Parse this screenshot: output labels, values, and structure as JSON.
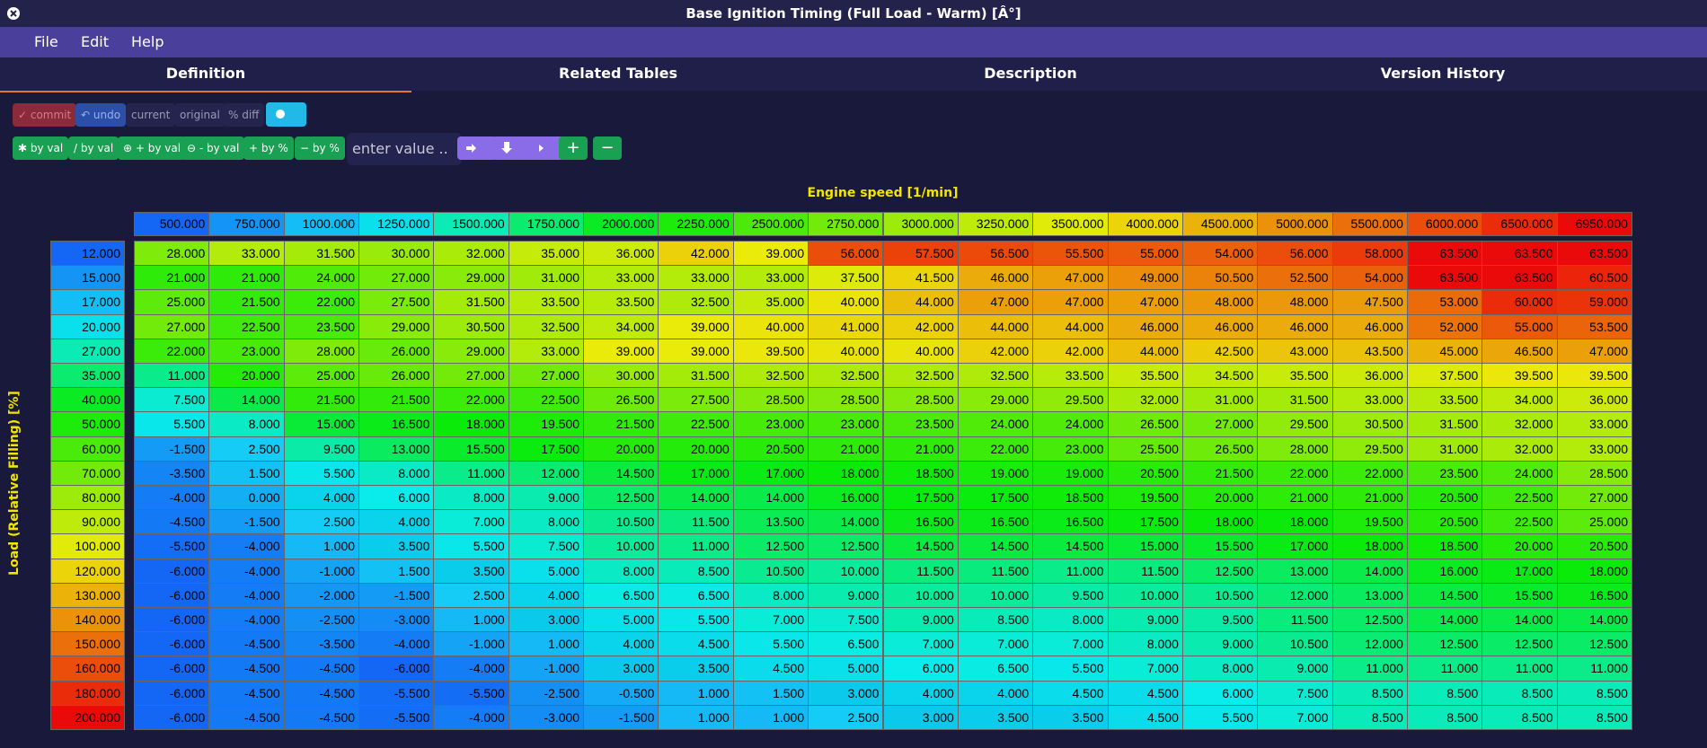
{
  "window": {
    "title": "Base Ignition Timing (Full Load - Warm) [Â°]"
  },
  "menu": [
    "File",
    "Edit",
    "Help"
  ],
  "tabs": [
    "Definition",
    "Related Tables",
    "Description",
    "Version History"
  ],
  "toolbar": {
    "row1": [
      "✓ commit",
      "↶ undo",
      "current",
      "original",
      "% diff"
    ],
    "row2": [
      "✱ by val",
      "/ by val",
      "⊕ + by val",
      "⊖ - by val",
      "+ by %",
      "− by %"
    ],
    "input": "enter value ..",
    "actions": [
      "+",
      "−"
    ]
  },
  "table": {
    "x_label": "Engine speed [1/min]",
    "y_label": "Load (Relative Filling) [%]",
    "columns": [
      "500.000",
      "750.000",
      "1000.000",
      "1250.000",
      "1500.000",
      "1750.000",
      "2000.000",
      "2250.000",
      "2500.000",
      "2750.000",
      "3000.000",
      "3250.000",
      "3500.000",
      "4000.000",
      "4500.000",
      "5000.000",
      "5500.000",
      "6000.000",
      "6500.000",
      "6950.000"
    ],
    "row_headers": [
      "12.000",
      "15.000",
      "17.000",
      "20.000",
      "27.000",
      "35.000",
      "40.000",
      "50.000",
      "60.000",
      "70.000",
      "80.000",
      "90.000",
      "100.000",
      "120.000",
      "130.000",
      "140.000",
      "150.000",
      "160.000",
      "180.000",
      "200.000"
    ],
    "rows": [
      [
        "28.000",
        "33.000",
        "31.500",
        "30.000",
        "32.000",
        "35.000",
        "36.000",
        "42.000",
        "39.000",
        "56.000",
        "57.500",
        "56.500",
        "55.500",
        "55.000",
        "54.000",
        "56.000",
        "58.000",
        "63.500",
        "63.500",
        "63.500"
      ],
      [
        "21.000",
        "21.000",
        "24.000",
        "27.000",
        "29.000",
        "31.000",
        "33.000",
        "33.000",
        "33.000",
        "37.500",
        "41.500",
        "46.000",
        "47.000",
        "49.000",
        "50.500",
        "52.500",
        "54.000",
        "63.500",
        "63.500",
        "60.500"
      ],
      [
        "25.000",
        "21.500",
        "22.000",
        "27.500",
        "31.500",
        "33.500",
        "33.500",
        "32.500",
        "35.000",
        "40.000",
        "44.000",
        "47.000",
        "47.000",
        "47.000",
        "48.000",
        "48.000",
        "47.500",
        "53.000",
        "60.000",
        "59.000"
      ],
      [
        "27.000",
        "22.500",
        "23.500",
        "29.000",
        "30.500",
        "32.500",
        "34.000",
        "39.000",
        "40.000",
        "41.000",
        "42.000",
        "44.000",
        "44.000",
        "46.000",
        "46.000",
        "46.000",
        "46.000",
        "52.000",
        "55.000",
        "53.500"
      ],
      [
        "22.000",
        "23.000",
        "28.000",
        "26.000",
        "29.000",
        "33.000",
        "39.000",
        "39.000",
        "39.500",
        "40.000",
        "40.000",
        "42.000",
        "42.000",
        "44.000",
        "42.500",
        "43.000",
        "43.500",
        "45.000",
        "46.500",
        "47.000"
      ],
      [
        "11.000",
        "20.000",
        "25.000",
        "26.000",
        "27.000",
        "27.000",
        "30.000",
        "31.500",
        "32.500",
        "32.500",
        "32.500",
        "32.500",
        "33.500",
        "35.500",
        "34.500",
        "35.500",
        "36.000",
        "37.500",
        "39.500",
        "39.500"
      ],
      [
        "7.500",
        "14.000",
        "21.500",
        "21.500",
        "22.000",
        "22.500",
        "26.500",
        "27.500",
        "28.500",
        "28.500",
        "28.500",
        "29.000",
        "29.500",
        "32.000",
        "31.000",
        "31.500",
        "33.000",
        "33.500",
        "34.000",
        "36.000"
      ],
      [
        "5.500",
        "8.000",
        "15.000",
        "16.500",
        "18.000",
        "19.500",
        "21.500",
        "22.500",
        "23.000",
        "23.000",
        "23.500",
        "24.000",
        "24.000",
        "26.500",
        "27.000",
        "29.500",
        "30.500",
        "31.500",
        "32.000",
        "33.000"
      ],
      [
        "-1.500",
        "2.500",
        "9.500",
        "13.000",
        "15.500",
        "17.500",
        "20.000",
        "20.000",
        "20.500",
        "21.000",
        "21.000",
        "22.000",
        "23.000",
        "25.500",
        "26.500",
        "28.000",
        "29.500",
        "31.000",
        "32.000",
        "33.000"
      ],
      [
        "-3.500",
        "1.500",
        "5.500",
        "8.000",
        "11.000",
        "12.000",
        "14.500",
        "17.000",
        "17.000",
        "18.000",
        "18.500",
        "19.000",
        "19.000",
        "20.500",
        "21.500",
        "22.000",
        "22.000",
        "23.500",
        "24.000",
        "28.500"
      ],
      [
        "-4.000",
        "0.000",
        "4.000",
        "6.000",
        "8.000",
        "9.000",
        "12.500",
        "14.000",
        "14.000",
        "16.000",
        "17.500",
        "17.500",
        "18.500",
        "19.500",
        "20.000",
        "21.000",
        "21.000",
        "20.500",
        "22.500",
        "27.000"
      ],
      [
        "-4.500",
        "-1.500",
        "2.500",
        "4.000",
        "7.000",
        "8.000",
        "10.500",
        "11.500",
        "13.500",
        "14.000",
        "16.500",
        "16.500",
        "16.500",
        "17.500",
        "18.000",
        "18.000",
        "19.500",
        "20.500",
        "22.500",
        "25.000"
      ],
      [
        "-5.500",
        "-4.000",
        "1.000",
        "3.500",
        "5.500",
        "7.500",
        "10.000",
        "11.000",
        "12.500",
        "12.500",
        "14.500",
        "14.500",
        "14.500",
        "15.000",
        "15.500",
        "17.000",
        "18.000",
        "18.500",
        "20.000",
        "20.500"
      ],
      [
        "-6.000",
        "-4.000",
        "-1.000",
        "1.500",
        "3.500",
        "5.000",
        "8.000",
        "8.500",
        "10.500",
        "10.000",
        "11.500",
        "11.500",
        "11.000",
        "11.500",
        "12.500",
        "13.000",
        "14.000",
        "16.000",
        "17.000",
        "18.000"
      ],
      [
        "-6.000",
        "-4.000",
        "-2.000",
        "-1.500",
        "2.500",
        "4.000",
        "6.500",
        "6.500",
        "8.000",
        "9.000",
        "10.000",
        "10.000",
        "9.500",
        "10.000",
        "10.500",
        "12.000",
        "13.000",
        "14.500",
        "15.500",
        "16.500"
      ],
      [
        "-6.000",
        "-4.000",
        "-2.500",
        "-3.000",
        "1.000",
        "3.000",
        "5.000",
        "5.500",
        "7.000",
        "7.500",
        "9.000",
        "8.500",
        "8.000",
        "9.000",
        "9.500",
        "11.500",
        "12.500",
        "14.000",
        "14.000",
        "14.000"
      ],
      [
        "-6.000",
        "-4.500",
        "-3.500",
        "-4.000",
        "-1.000",
        "1.000",
        "4.000",
        "4.500",
        "5.500",
        "6.500",
        "7.000",
        "7.000",
        "7.000",
        "8.000",
        "9.000",
        "10.500",
        "12.000",
        "12.500",
        "12.500",
        "12.500"
      ],
      [
        "-6.000",
        "-4.500",
        "-4.500",
        "-6.000",
        "-4.000",
        "-1.000",
        "3.000",
        "3.500",
        "4.500",
        "5.000",
        "6.000",
        "6.500",
        "5.500",
        "7.000",
        "8.000",
        "9.000",
        "11.000",
        "11.000",
        "11.000",
        "11.000"
      ],
      [
        "-6.000",
        "-4.500",
        "-4.500",
        "-5.500",
        "-5.500",
        "-2.500",
        "-0.500",
        "1.000",
        "1.500",
        "3.000",
        "4.000",
        "4.000",
        "4.500",
        "4.500",
        "6.000",
        "7.500",
        "8.500",
        "8.500",
        "8.500",
        "8.500"
      ],
      [
        "-6.000",
        "-4.500",
        "-4.500",
        "-5.500",
        "-4.000",
        "-3.000",
        "-1.500",
        "1.000",
        "1.000",
        "2.500",
        "3.000",
        "3.500",
        "3.500",
        "4.500",
        "5.500",
        "7.000",
        "8.500",
        "8.500",
        "8.500",
        "8.500"
      ]
    ]
  }
}
